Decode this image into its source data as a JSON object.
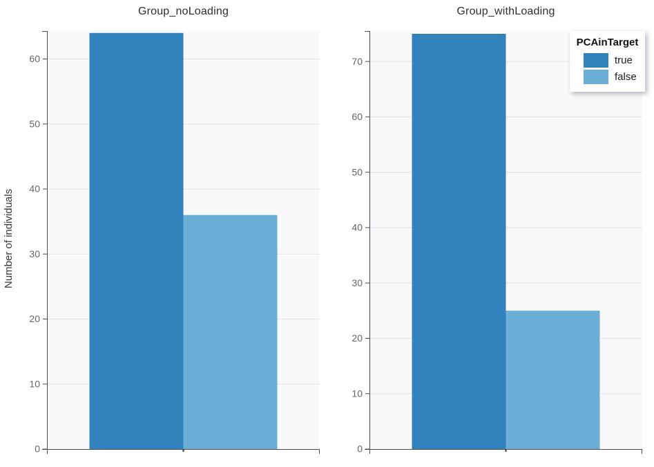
{
  "chart_data": {
    "type": "bar",
    "ylabel": "Number of individuals",
    "categories": [
      "true",
      "false"
    ],
    "colors": {
      "true": "#3182bd",
      "false": "#6baed6"
    },
    "plot_bg": "#f9f9fb",
    "grid_color": "#e4e4e8",
    "axis_color": "#4c4c4c",
    "tick_label_color": "#62686f",
    "title_color": "#2e2e2e",
    "grid": true,
    "legend": {
      "title": "PCAinTarget",
      "position": "top-right",
      "entries": [
        {
          "label": "true",
          "color": "#3182bd"
        },
        {
          "label": "false",
          "color": "#6baed6"
        }
      ]
    },
    "panels": [
      {
        "title": "Group_noLoading",
        "values": [
          64,
          36
        ],
        "yticks": [
          0,
          10,
          20,
          30,
          40,
          50,
          60
        ],
        "ylim": [
          0,
          64.3
        ]
      },
      {
        "title": "Group_withLoading",
        "values": [
          75,
          25
        ],
        "yticks": [
          0,
          10,
          20,
          30,
          40,
          50,
          60,
          70
        ],
        "ylim": [
          0,
          75.5
        ]
      }
    ]
  }
}
